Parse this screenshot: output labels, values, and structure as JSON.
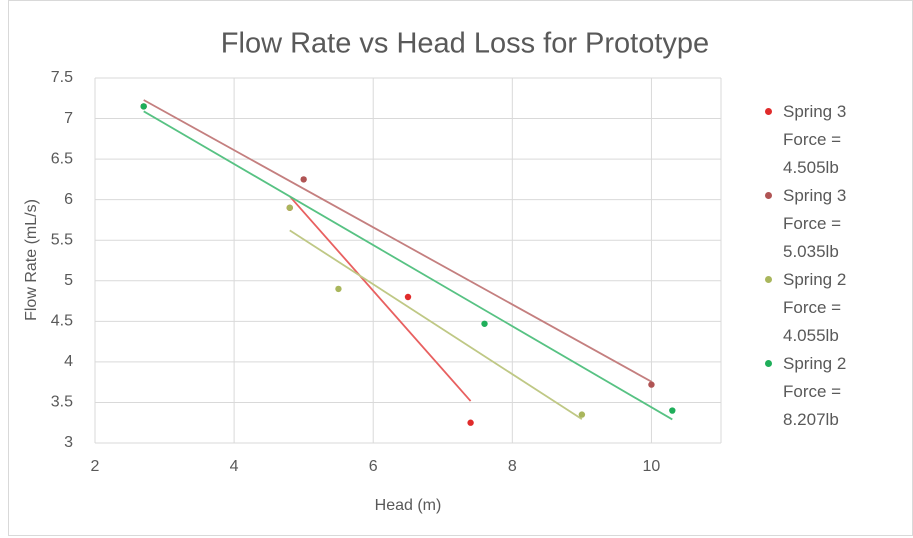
{
  "chart_data": {
    "type": "scatter",
    "title": "Flow Rate vs Head Loss for Prototype",
    "x_label": "Head (m)",
    "y_label": "Flow Rate (mL/s)",
    "xlim": [
      2,
      11
    ],
    "ylim": [
      3,
      7.5
    ],
    "xticks": [
      2,
      4,
      6,
      8,
      10
    ],
    "yticks": [
      3,
      3.5,
      4,
      4.5,
      5,
      5.5,
      6,
      6.5,
      7,
      7.5
    ],
    "grid": true,
    "trendline": "linear",
    "legend": "right",
    "series": [
      {
        "name": "Spring 3 Force = 4.505lb",
        "color": "#e02b2b",
        "x": [
          4.8,
          6.5,
          7.4
        ],
        "values": [
          5.9,
          4.8,
          3.25
        ]
      },
      {
        "name": "Spring 3 Force = 5.035lb",
        "color": "#b05454",
        "x": [
          2.7,
          5,
          10
        ],
        "values": [
          7.15,
          6.25,
          3.72
        ]
      },
      {
        "name": "Spring 2 Force = 4.055lb",
        "color": "#a9b65c",
        "x": [
          4.8,
          5.5,
          9
        ],
        "values": [
          5.9,
          4.9,
          3.35
        ]
      },
      {
        "name": "Spring 2 Force = 8.207lb",
        "color": "#1fae5a",
        "x": [
          2.7,
          7.6,
          10.3
        ],
        "values": [
          7.15,
          4.47,
          3.4
        ]
      }
    ]
  }
}
